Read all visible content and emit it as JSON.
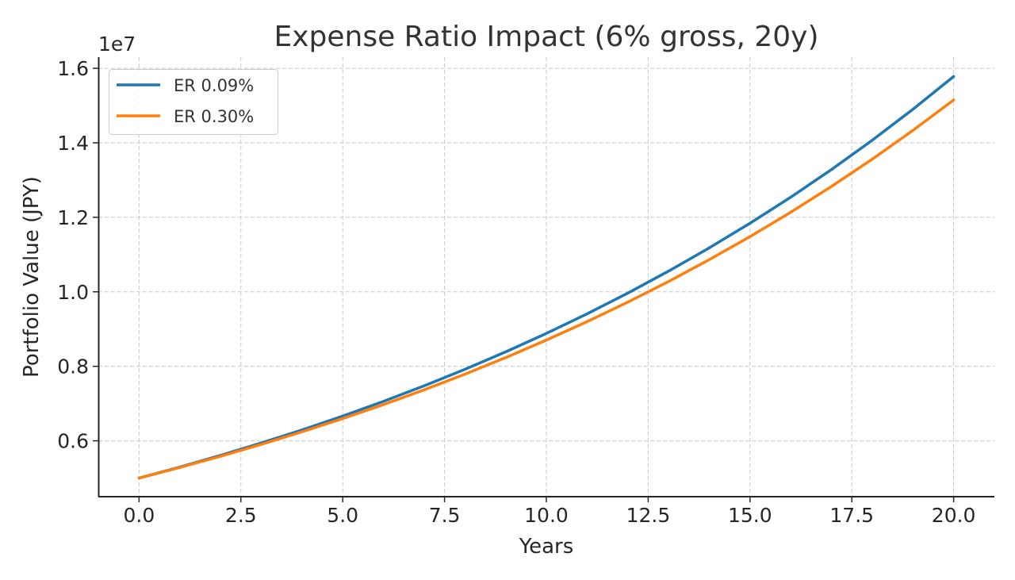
{
  "chart_data": {
    "type": "line",
    "title": "Expense Ratio Impact (6% gross, 20y)",
    "xlabel": "Years",
    "ylabel": "Portfolio Value (JPY)",
    "y_offset_label": "1e7",
    "xlim": [
      -1,
      21
    ],
    "ylim": [
      0.45,
      1.63
    ],
    "y_scale_factor": 10000000,
    "grid": true,
    "legend_position": "top-left",
    "x_ticks": [
      0,
      2.5,
      5,
      7.5,
      10,
      12.5,
      15,
      17.5,
      20
    ],
    "x_tick_labels": [
      "0.0",
      "2.5",
      "5.0",
      "7.5",
      "10.0",
      "12.5",
      "15.0",
      "17.5",
      "20.0"
    ],
    "y_ticks": [
      0.6,
      0.8,
      1.0,
      1.2,
      1.4,
      1.6
    ],
    "y_tick_labels": [
      "0.6",
      "0.8",
      "1.0",
      "1.2",
      "1.4",
      "1.6"
    ],
    "x": [
      0,
      1,
      2,
      3,
      4,
      5,
      6,
      7,
      8,
      9,
      10,
      11,
      12,
      13,
      14,
      15,
      16,
      17,
      18,
      19,
      20
    ],
    "series": [
      {
        "name": "ER 0.09%",
        "color": "#1f77b4",
        "values": [
          0.5,
          0.5296,
          0.5609,
          0.5941,
          0.6292,
          0.6665,
          0.7059,
          0.7477,
          0.7919,
          0.8387,
          0.8883,
          0.9409,
          0.9965,
          1.0555,
          1.1179,
          1.184,
          1.254,
          1.3282,
          1.4068,
          1.49,
          1.5781
        ]
      },
      {
        "name": "ER 0.30%",
        "color": "#ff7f0e",
        "values": [
          0.5,
          0.5285,
          0.5586,
          0.5904,
          0.6241,
          0.6596,
          0.6972,
          0.7369,
          0.7789,
          0.8233,
          0.8703,
          0.9199,
          0.9723,
          1.0277,
          1.0863,
          1.1482,
          1.2137,
          1.2828,
          1.356,
          1.4333,
          1.515
        ]
      }
    ]
  }
}
